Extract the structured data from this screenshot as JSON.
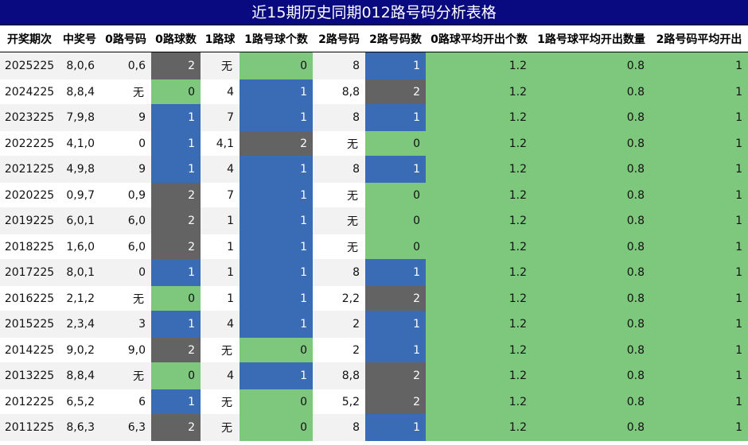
{
  "title": "近15期历史同期012路号码分析表格",
  "headers": [
    "开奖期次",
    "中奖号",
    "0路号码",
    "0路球数",
    "1路球",
    "1路号球个数",
    "2路号码",
    "2路号码数",
    "0路球平均开出个数",
    "1路号球平均开出数量",
    "2路号码平均开出"
  ],
  "colors": {
    "green": "#7ec87e",
    "blue": "#3a6bb5",
    "gray": "#636363",
    "header": "#0a0a80"
  },
  "rows": [
    {
      "cells": [
        "2025225",
        "8,0,6",
        "0,6",
        "2",
        "无",
        "0",
        "8",
        "1",
        "1.2",
        "0.8",
        "1"
      ],
      "colors": {
        "c3": "gray",
        "c5": "green",
        "c7": "blue"
      }
    },
    {
      "cells": [
        "2024225",
        "8,8,4",
        "无",
        "0",
        "4",
        "1",
        "8,8",
        "2",
        "1.2",
        "0.8",
        "1"
      ],
      "colors": {
        "c3": "green",
        "c5": "blue",
        "c7": "gray"
      }
    },
    {
      "cells": [
        "2023225",
        "7,9,8",
        "9",
        "1",
        "7",
        "1",
        "8",
        "1",
        "1.2",
        "0.8",
        "1"
      ],
      "colors": {
        "c3": "blue",
        "c5": "blue",
        "c7": "blue"
      }
    },
    {
      "cells": [
        "2022225",
        "4,1,0",
        "0",
        "1",
        "4,1",
        "2",
        "无",
        "0",
        "1.2",
        "0.8",
        "1"
      ],
      "colors": {
        "c3": "blue",
        "c5": "gray",
        "c7": "green"
      }
    },
    {
      "cells": [
        "2021225",
        "4,9,8",
        "9",
        "1",
        "4",
        "1",
        "8",
        "1",
        "1.2",
        "0.8",
        "1"
      ],
      "colors": {
        "c3": "blue",
        "c5": "blue",
        "c7": "blue"
      }
    },
    {
      "cells": [
        "2020225",
        "0,9,7",
        "0,9",
        "2",
        "7",
        "1",
        "无",
        "0",
        "1.2",
        "0.8",
        "1"
      ],
      "colors": {
        "c3": "gray",
        "c5": "blue",
        "c7": "green"
      }
    },
    {
      "cells": [
        "2019225",
        "6,0,1",
        "6,0",
        "2",
        "1",
        "1",
        "无",
        "0",
        "1.2",
        "0.8",
        "1"
      ],
      "colors": {
        "c3": "gray",
        "c5": "blue",
        "c7": "green"
      }
    },
    {
      "cells": [
        "2018225",
        "1,6,0",
        "6,0",
        "2",
        "1",
        "1",
        "无",
        "0",
        "1.2",
        "0.8",
        "1"
      ],
      "colors": {
        "c3": "gray",
        "c5": "blue",
        "c7": "green"
      }
    },
    {
      "cells": [
        "2017225",
        "8,0,1",
        "0",
        "1",
        "1",
        "1",
        "8",
        "1",
        "1.2",
        "0.8",
        "1"
      ],
      "colors": {
        "c3": "blue",
        "c5": "blue",
        "c7": "blue"
      }
    },
    {
      "cells": [
        "2016225",
        "2,1,2",
        "无",
        "0",
        "1",
        "1",
        "2,2",
        "2",
        "1.2",
        "0.8",
        "1"
      ],
      "colors": {
        "c3": "green",
        "c5": "blue",
        "c7": "gray"
      }
    },
    {
      "cells": [
        "2015225",
        "2,3,4",
        "3",
        "1",
        "4",
        "1",
        "2",
        "1",
        "1.2",
        "0.8",
        "1"
      ],
      "colors": {
        "c3": "blue",
        "c5": "blue",
        "c7": "blue"
      }
    },
    {
      "cells": [
        "2014225",
        "9,0,2",
        "9,0",
        "2",
        "无",
        "0",
        "2",
        "1",
        "1.2",
        "0.8",
        "1"
      ],
      "colors": {
        "c3": "gray",
        "c5": "green",
        "c7": "blue"
      }
    },
    {
      "cells": [
        "2013225",
        "8,8,4",
        "无",
        "0",
        "4",
        "1",
        "8,8",
        "2",
        "1.2",
        "0.8",
        "1"
      ],
      "colors": {
        "c3": "green",
        "c5": "blue",
        "c7": "gray"
      }
    },
    {
      "cells": [
        "2012225",
        "6,5,2",
        "6",
        "1",
        "无",
        "0",
        "5,2",
        "2",
        "1.2",
        "0.8",
        "1"
      ],
      "colors": {
        "c3": "blue",
        "c5": "green",
        "c7": "gray"
      }
    },
    {
      "cells": [
        "2011225",
        "8,6,3",
        "6,3",
        "2",
        "无",
        "0",
        "8",
        "1",
        "1.2",
        "0.8",
        "1"
      ],
      "colors": {
        "c3": "gray",
        "c5": "green",
        "c7": "blue"
      }
    }
  ]
}
